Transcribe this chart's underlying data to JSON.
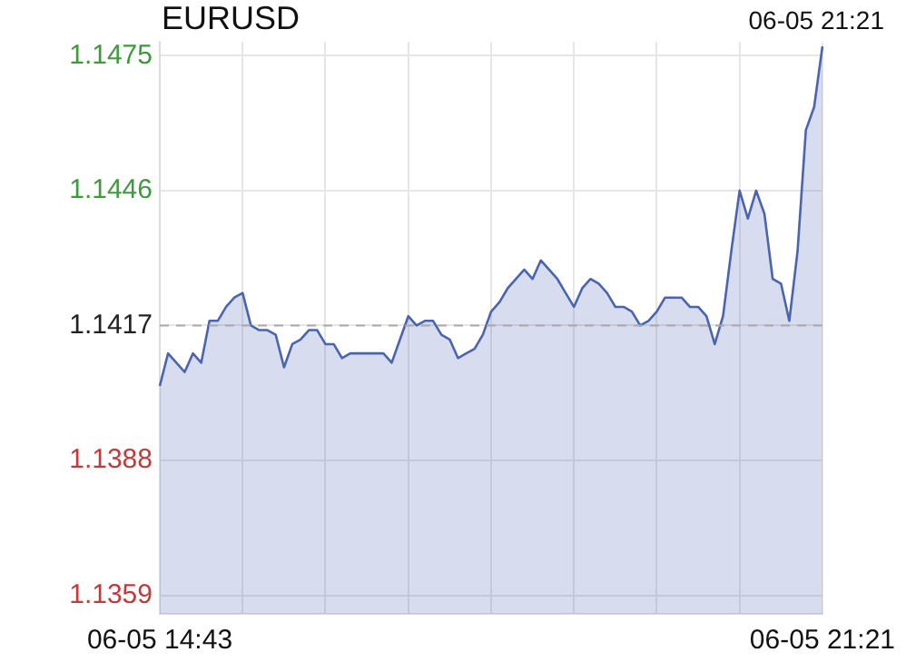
{
  "chart_data": {
    "type": "area",
    "title": "EURUSD",
    "subtitle": "06-05 21:21",
    "categories": [
      "06-05 14:43",
      null,
      null,
      null,
      null,
      null,
      null,
      null,
      null,
      null,
      null,
      null,
      null,
      null,
      null,
      null,
      null,
      null,
      null,
      null,
      null,
      null,
      null,
      null,
      null,
      null,
      null,
      null,
      null,
      null,
      null,
      null,
      null,
      null,
      null,
      null,
      null,
      null,
      null,
      null,
      null,
      null,
      null,
      null,
      null,
      null,
      null,
      null,
      null,
      null,
      null,
      null,
      null,
      null,
      null,
      null,
      null,
      null,
      null,
      null,
      null,
      null,
      null,
      null,
      null,
      null,
      null,
      null,
      null,
      null,
      null,
      null,
      null,
      null,
      null,
      null,
      null,
      null,
      null,
      null,
      "06-05 21:21"
    ],
    "series": [
      {
        "color": "#4a64b0",
        "values": [
          1.1404,
          1.1411,
          1.1409,
          1.1407,
          1.1411,
          1.1409,
          1.1418,
          1.1418,
          1.1421,
          1.1423,
          1.1424,
          1.1417,
          1.1416,
          1.1416,
          1.1415,
          1.1408,
          1.1413,
          1.1414,
          1.1416,
          1.1416,
          1.1413,
          1.1413,
          1.141,
          1.1411,
          1.1411,
          1.1411,
          1.1411,
          1.1411,
          1.1409,
          1.1414,
          1.1419,
          1.1417,
          1.1418,
          1.1418,
          1.1415,
          1.1414,
          1.141,
          1.1411,
          1.1412,
          1.1415,
          1.142,
          1.1422,
          1.1425,
          1.1427,
          1.1429,
          1.1427,
          1.1431,
          1.1429,
          1.1427,
          1.1424,
          1.1421,
          1.1425,
          1.1427,
          1.1426,
          1.1424,
          1.1421,
          1.1421,
          1.142,
          1.1417,
          1.1418,
          1.142,
          1.1423,
          1.1423,
          1.1423,
          1.1421,
          1.1421,
          1.1419,
          1.1413,
          1.1419,
          1.1433,
          1.1446,
          1.144,
          1.1446,
          1.1441,
          1.1427,
          1.1426,
          1.1418,
          1.1433,
          1.1459,
          1.1464,
          1.1477
        ]
      }
    ],
    "ylim": [
      1.1355,
      1.1478
    ],
    "yticks": [
      1.1359,
      1.1388,
      1.1417,
      1.1446,
      1.1475
    ],
    "ref_lines": [
      {
        "axis": "y",
        "value": 1.1417,
        "color": "#aaaaaa",
        "line_style": "dashed"
      }
    ],
    "grid": true,
    "legend": false,
    "marker": "none",
    "line_style": "solid"
  }
}
